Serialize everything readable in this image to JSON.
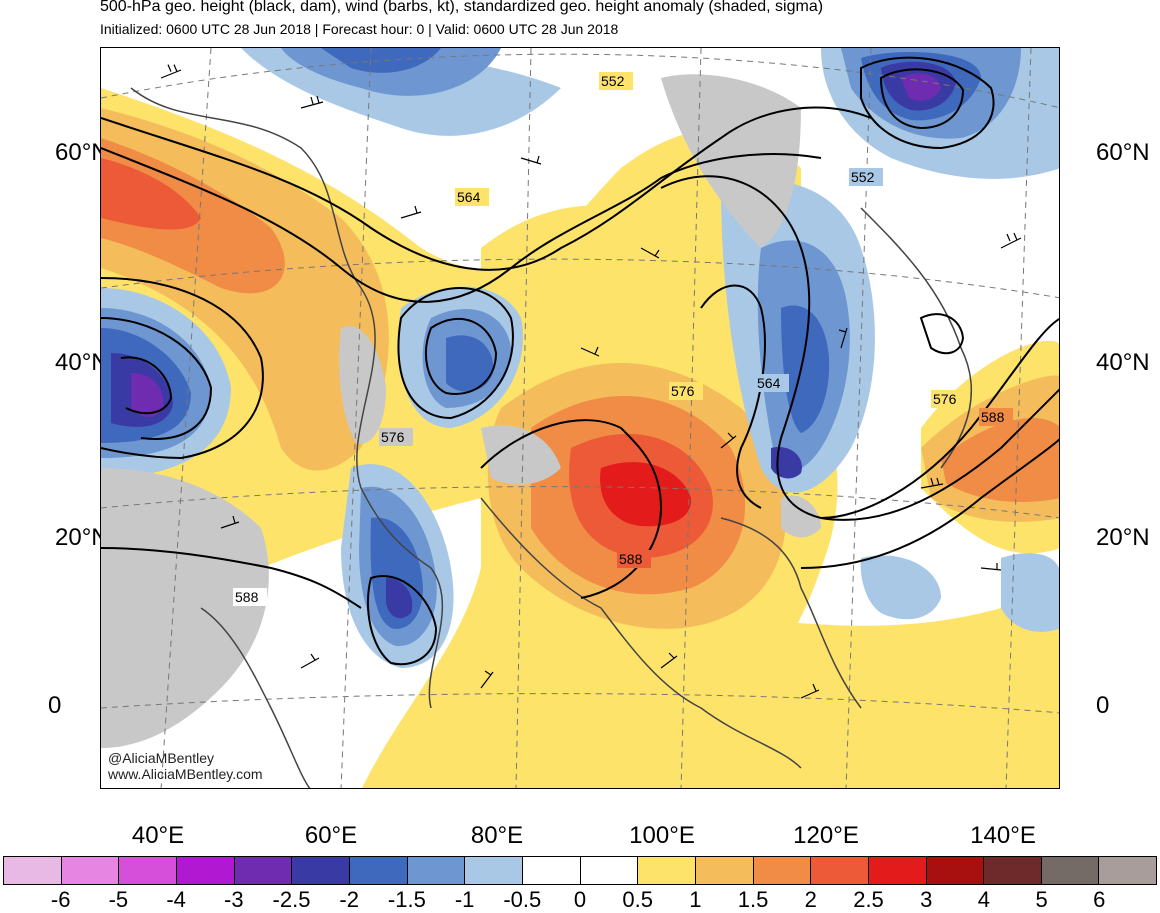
{
  "header": {
    "title": "500-hPa geo. height (black, dam), wind (barbs, kt), standardized geo. height anomaly (shaded, sigma)",
    "subtitle": "Initialized: 0600 UTC 28 Jun 2018 | Forecast hour: 0 | Valid: 0600 UTC 28 Jun 2018"
  },
  "map": {
    "lat_labels": [
      "60°N",
      "40°N",
      "20°N",
      "0"
    ],
    "lon_labels": [
      "40°E",
      "60°E",
      "80°E",
      "100°E",
      "120°E",
      "140°E"
    ],
    "contour_labels": [
      "552",
      "564",
      "576",
      "588",
      "552",
      "564",
      "576",
      "588",
      "576",
      "588"
    ],
    "credit_handle": "@AliciaMBentley",
    "credit_url": "www.AliciaMBentley.com"
  },
  "colorbar": {
    "colors": [
      "#e9b9e6",
      "#e685e2",
      "#d64fdb",
      "#b018d1",
      "#6f2cb0",
      "#3a3aa5",
      "#3f69bd",
      "#6e97d2",
      "#a8c8e6",
      "#ffffff",
      "#ffffff",
      "#fde36a",
      "#f4bc5a",
      "#f08c45",
      "#ec5a37",
      "#e41b1b",
      "#a80f0f",
      "#6e2a2a",
      "#746a66",
      "#a89d9a"
    ],
    "ticks": [
      "-6",
      "-5",
      "-4",
      "-3",
      "-2.5",
      "-2",
      "-1.5",
      "-1",
      "-0.5",
      "0",
      "0.5",
      "1",
      "1.5",
      "2",
      "2.5",
      "3",
      "4",
      "5",
      "6"
    ]
  }
}
